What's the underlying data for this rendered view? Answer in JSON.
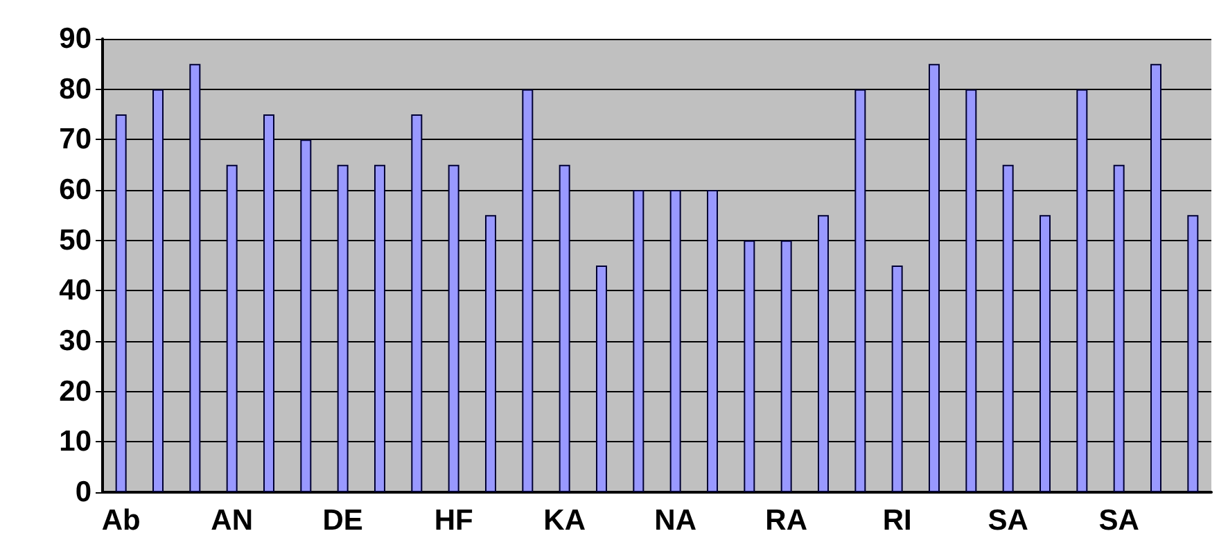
{
  "chart_data": {
    "type": "bar",
    "categories": [
      "Ab",
      null,
      null,
      "AN",
      null,
      null,
      "DE",
      null,
      null,
      "HF",
      null,
      null,
      "KA",
      null,
      null,
      "NA",
      null,
      null,
      "RA",
      null,
      null,
      "RI",
      null,
      null,
      "SA",
      null,
      null,
      "SA",
      null,
      null
    ],
    "values": [
      75,
      80,
      85,
      65,
      75,
      70,
      65,
      65,
      75,
      65,
      55,
      80,
      65,
      45,
      60,
      60,
      60,
      50,
      50,
      55,
      80,
      45,
      85,
      80,
      65,
      55,
      80,
      65,
      85,
      55
    ],
    "color": "#9999ff",
    "ylim": [
      0,
      90
    ],
    "yticks": [
      0,
      10,
      20,
      30,
      40,
      50,
      60,
      70,
      80,
      90
    ],
    "grid": "y"
  }
}
